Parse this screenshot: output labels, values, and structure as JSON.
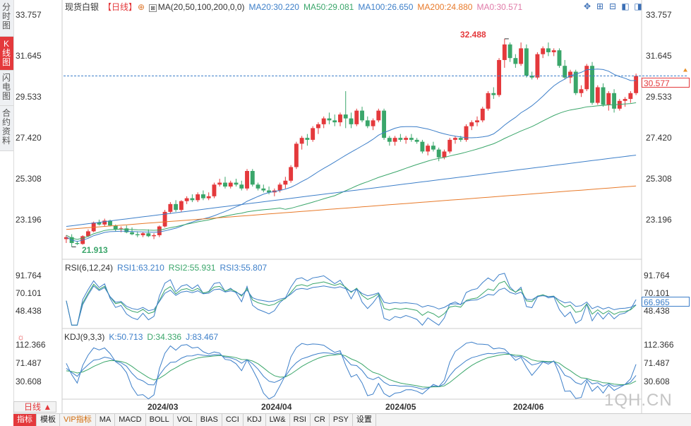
{
  "sidebar": {
    "tabs": [
      {
        "label": "分时图",
        "active": false
      },
      {
        "label": "K线图",
        "active": true
      },
      {
        "label": "闪电图",
        "active": false
      },
      {
        "label": "合约资料",
        "active": false
      }
    ]
  },
  "header": {
    "name": "现货白银",
    "period": "【日线】",
    "ma_params": "MA(20,50,100,200,0,0)",
    "ma20": "MA20:30.220",
    "ma50": "MA50:29.081",
    "ma100": "MA100:26.650",
    "ma200": "MA200:24.880",
    "ma0": "MA0:30.571"
  },
  "colors": {
    "up": "#e4393c",
    "down": "#3aa66a",
    "ma20": "#3d7fc9",
    "ma50": "#3aa66a",
    "ma100": "#3d7fc9",
    "ma200": "#e87a2a",
    "ma0": "#e07aa8"
  },
  "price_axis": {
    "ticks": [
      "33.757",
      "31.645",
      "29.533",
      "27.420",
      "25.308",
      "23.196"
    ],
    "current": "30.577",
    "high_label": "32.488",
    "low_label": "21.913"
  },
  "rsi": {
    "title": "RSI(6,12,24)",
    "rsi1": "RSI1:63.210",
    "rsi2": "RSI2:55.931",
    "rsi3": "RSI3:55.807",
    "ticks": [
      "91.764",
      "70.101",
      "48.438"
    ],
    "current": "66.965"
  },
  "kdj": {
    "title": "KDJ(9,3,3)",
    "k": "K:50.713",
    "d": "D:34.336",
    "j": "J:83.467",
    "ticks": [
      "112.366",
      "71.487",
      "30.608"
    ]
  },
  "dates": [
    "2024/03",
    "2024/04",
    "2024/05",
    "2024/06"
  ],
  "period_button": "日线",
  "bottom_tabs": [
    "指标",
    "模板",
    "VIP指标",
    "MA",
    "MACD",
    "BOLL",
    "VOL",
    "BIAS",
    "CCI",
    "KDJ",
    "LW&",
    "RSI",
    "CR",
    "PSY",
    "设置"
  ],
  "watermark": "1QH.CN",
  "chart_data": {
    "type": "candlestick",
    "title": "现货白银 日线",
    "ylim": [
      21.5,
      34.0
    ],
    "ohlc": [
      [
        22.2,
        22.4,
        22.0,
        22.3
      ],
      [
        22.3,
        22.45,
        21.8,
        22.0
      ],
      [
        22.0,
        22.1,
        21.9,
        21.95
      ],
      [
        21.95,
        22.4,
        21.91,
        22.35
      ],
      [
        22.35,
        22.7,
        22.3,
        22.6
      ],
      [
        22.6,
        23.1,
        22.55,
        23.05
      ],
      [
        23.05,
        23.2,
        22.9,
        22.95
      ],
      [
        22.95,
        23.25,
        22.85,
        23.15
      ],
      [
        23.15,
        23.2,
        22.85,
        22.9
      ],
      [
        22.9,
        22.95,
        22.6,
        22.7
      ],
      [
        22.7,
        22.85,
        22.55,
        22.75
      ],
      [
        22.75,
        22.9,
        22.5,
        22.55
      ],
      [
        22.55,
        22.8,
        22.4,
        22.45
      ],
      [
        22.45,
        22.6,
        22.3,
        22.4
      ],
      [
        22.4,
        22.55,
        22.3,
        22.5
      ],
      [
        22.5,
        22.7,
        22.3,
        22.35
      ],
      [
        22.35,
        22.5,
        22.2,
        22.4
      ],
      [
        22.4,
        22.9,
        22.3,
        22.85
      ],
      [
        22.85,
        23.7,
        22.8,
        23.6
      ],
      [
        23.6,
        24.1,
        23.5,
        24.0
      ],
      [
        24.0,
        24.2,
        23.6,
        23.7
      ],
      [
        23.7,
        24.2,
        23.6,
        24.15
      ],
      [
        24.15,
        24.4,
        24.0,
        24.3
      ],
      [
        24.3,
        24.5,
        24.1,
        24.2
      ],
      [
        24.2,
        24.6,
        24.1,
        24.5
      ],
      [
        24.5,
        24.7,
        24.2,
        24.3
      ],
      [
        24.3,
        24.6,
        24.2,
        24.4
      ],
      [
        24.4,
        25.1,
        24.3,
        25.0
      ],
      [
        25.0,
        25.3,
        24.9,
        25.1
      ],
      [
        25.1,
        25.4,
        24.8,
        24.9
      ],
      [
        24.9,
        25.2,
        24.8,
        25.1
      ],
      [
        25.1,
        25.3,
        24.9,
        25.0
      ],
      [
        25.0,
        25.2,
        24.7,
        24.8
      ],
      [
        24.8,
        25.8,
        24.7,
        25.7
      ],
      [
        25.7,
        25.8,
        24.9,
        25.0
      ],
      [
        25.0,
        25.1,
        24.7,
        24.8
      ],
      [
        24.8,
        25.0,
        24.6,
        24.7
      ],
      [
        24.7,
        24.9,
        24.5,
        24.6
      ],
      [
        24.6,
        24.8,
        24.4,
        24.7
      ],
      [
        24.7,
        25.1,
        24.6,
        25.0
      ],
      [
        25.0,
        25.4,
        24.8,
        25.2
      ],
      [
        25.2,
        26.0,
        25.1,
        25.9
      ],
      [
        25.9,
        27.2,
        25.8,
        27.1
      ],
      [
        27.1,
        27.5,
        26.8,
        27.4
      ],
      [
        27.4,
        27.6,
        27.0,
        27.3
      ],
      [
        27.3,
        28.0,
        27.2,
        27.9
      ],
      [
        27.9,
        28.2,
        27.6,
        28.1
      ],
      [
        28.1,
        28.5,
        27.9,
        28.4
      ],
      [
        28.4,
        28.7,
        28.1,
        28.3
      ],
      [
        28.3,
        28.6,
        28.0,
        28.2
      ],
      [
        28.2,
        28.7,
        28.0,
        28.6
      ],
      [
        28.6,
        29.8,
        27.9,
        28.4
      ],
      [
        28.4,
        28.7,
        27.9,
        28.1
      ],
      [
        28.1,
        28.9,
        28.0,
        28.8
      ],
      [
        28.8,
        29.0,
        28.2,
        28.3
      ],
      [
        28.3,
        28.5,
        27.9,
        28.0
      ],
      [
        28.0,
        28.4,
        27.8,
        28.3
      ],
      [
        28.3,
        28.9,
        28.2,
        28.8
      ],
      [
        28.8,
        28.9,
        27.3,
        27.4
      ],
      [
        27.4,
        27.5,
        27.0,
        27.2
      ],
      [
        27.2,
        27.5,
        27.0,
        27.4
      ],
      [
        27.4,
        27.6,
        27.2,
        27.3
      ],
      [
        27.3,
        27.5,
        27.1,
        27.4
      ],
      [
        27.4,
        27.6,
        27.2,
        27.3
      ],
      [
        27.3,
        27.4,
        27.1,
        27.2
      ],
      [
        27.2,
        27.3,
        26.6,
        26.7
      ],
      [
        26.7,
        27.1,
        26.5,
        27.0
      ],
      [
        27.0,
        27.2,
        26.7,
        26.8
      ],
      [
        26.8,
        26.9,
        26.2,
        26.4
      ],
      [
        26.4,
        26.8,
        26.3,
        26.7
      ],
      [
        26.7,
        27.4,
        26.6,
        27.3
      ],
      [
        27.3,
        27.5,
        27.1,
        27.4
      ],
      [
        27.4,
        27.5,
        27.2,
        27.3
      ],
      [
        27.3,
        28.1,
        27.2,
        28.0
      ],
      [
        28.0,
        28.3,
        27.8,
        28.2
      ],
      [
        28.2,
        28.5,
        28.0,
        28.3
      ],
      [
        28.3,
        29.0,
        28.2,
        28.9
      ],
      [
        28.9,
        29.8,
        28.8,
        29.7
      ],
      [
        29.7,
        30.0,
        29.4,
        29.6
      ],
      [
        29.6,
        31.5,
        29.5,
        31.4
      ],
      [
        31.4,
        32.49,
        31.0,
        32.2
      ],
      [
        32.2,
        32.3,
        31.3,
        31.5
      ],
      [
        31.5,
        31.7,
        31.0,
        31.2
      ],
      [
        31.2,
        32.3,
        31.1,
        32.0
      ],
      [
        32.0,
        32.2,
        30.5,
        30.6
      ],
      [
        30.6,
        30.8,
        30.4,
        30.5
      ],
      [
        30.5,
        31.8,
        30.4,
        31.7
      ],
      [
        31.7,
        32.1,
        31.5,
        32.0
      ],
      [
        32.0,
        32.3,
        31.6,
        31.8
      ],
      [
        31.8,
        32.0,
        31.6,
        31.9
      ],
      [
        31.9,
        32.0,
        31.0,
        31.1
      ],
      [
        31.1,
        31.4,
        30.4,
        30.5
      ],
      [
        30.5,
        30.9,
        30.2,
        30.8
      ],
      [
        30.8,
        30.9,
        29.6,
        29.7
      ],
      [
        29.7,
        30.1,
        29.5,
        29.9
      ],
      [
        29.9,
        31.2,
        29.8,
        31.1
      ],
      [
        31.1,
        31.3,
        29.1,
        29.2
      ],
      [
        29.2,
        30.1,
        29.1,
        30.0
      ],
      [
        30.0,
        30.2,
        29.0,
        29.1
      ],
      [
        29.1,
        29.8,
        28.8,
        29.7
      ],
      [
        29.7,
        29.9,
        28.7,
        28.9
      ],
      [
        28.9,
        29.4,
        28.8,
        29.3
      ],
      [
        29.3,
        29.5,
        29.0,
        29.4
      ],
      [
        29.4,
        29.8,
        29.2,
        29.7
      ],
      [
        29.7,
        30.7,
        29.6,
        30.58
      ]
    ],
    "series": [
      {
        "name": "MA20",
        "values_start": 0
      },
      {
        "name": "MA50"
      },
      {
        "name": "MA100"
      },
      {
        "name": "MA200"
      }
    ]
  }
}
